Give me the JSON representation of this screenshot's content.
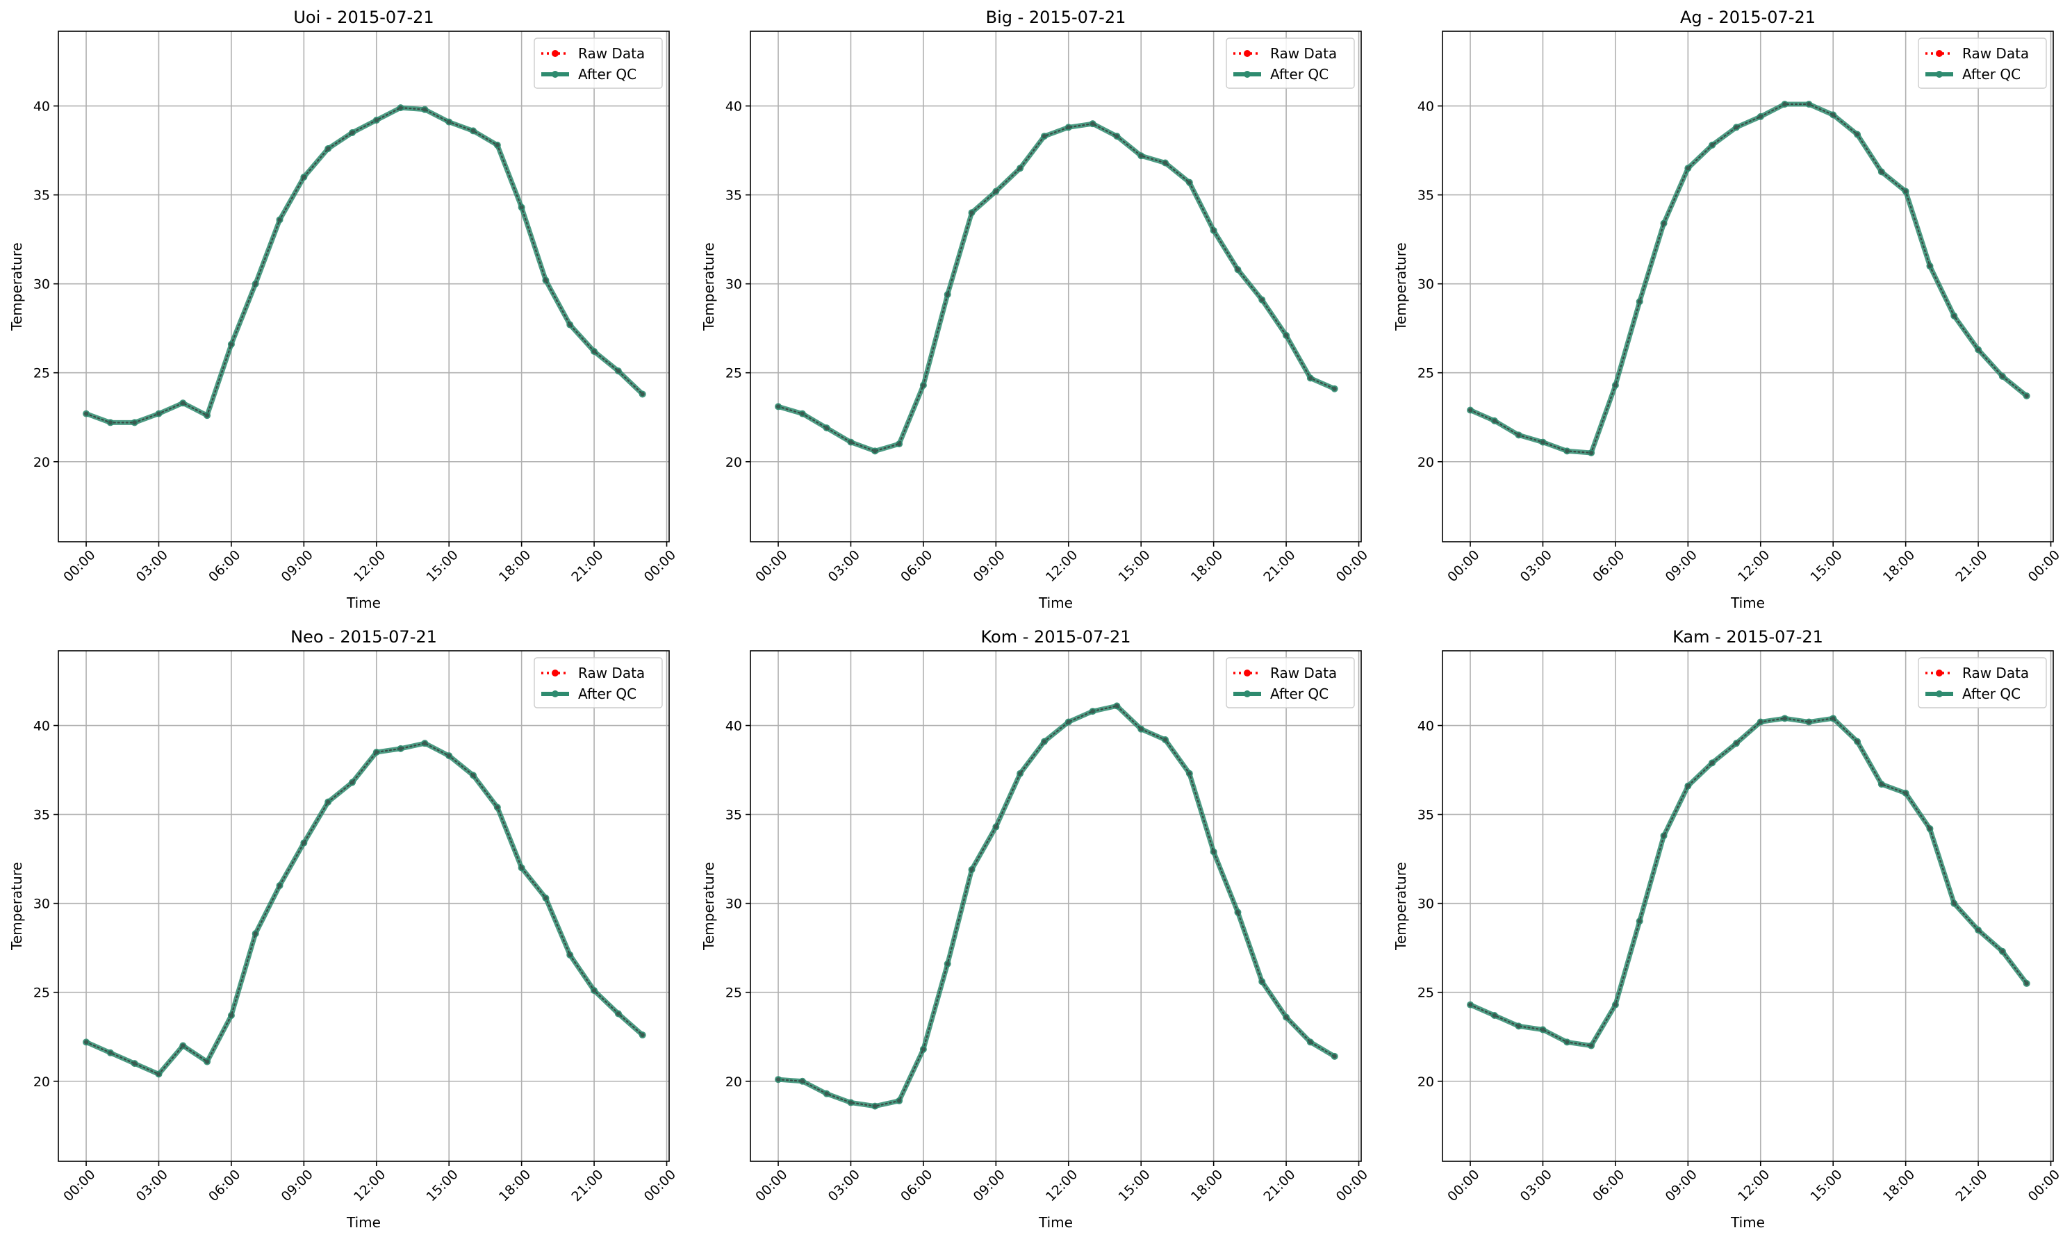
{
  "chart_data": [
    {
      "type": "line",
      "title": "Uoi - 2015-07-21",
      "xlabel": "Time",
      "ylabel": "Temperature",
      "x": [
        "00:00",
        "01:00",
        "02:00",
        "03:00",
        "04:00",
        "05:00",
        "06:00",
        "07:00",
        "08:00",
        "09:00",
        "10:00",
        "11:00",
        "12:00",
        "13:00",
        "14:00",
        "15:00",
        "16:00",
        "17:00",
        "18:00",
        "19:00",
        "20:00",
        "21:00",
        "22:00",
        "23:00"
      ],
      "xticks": [
        "00:00",
        "03:00",
        "06:00",
        "09:00",
        "12:00",
        "15:00",
        "18:00",
        "21:00",
        "00:00"
      ],
      "yticks": [
        20,
        25,
        30,
        35,
        40
      ],
      "ylim": [
        15.5,
        44.2
      ],
      "grid": true,
      "legend_position": "top-right",
      "series": [
        {
          "name": "Raw Data",
          "color": "#ff0000",
          "style": "dotted-markers",
          "values": [
            22.7,
            22.2,
            22.2,
            22.7,
            23.3,
            22.6,
            26.6,
            30.0,
            33.6,
            36.0,
            37.6,
            38.5,
            39.2,
            39.9,
            39.8,
            39.1,
            38.6,
            37.8,
            34.3,
            30.2,
            27.7,
            26.2,
            25.1,
            23.8
          ]
        },
        {
          "name": "After QC",
          "color": "#2e8b6f",
          "style": "solid-markers",
          "values": [
            22.7,
            22.2,
            22.2,
            22.7,
            23.3,
            22.6,
            26.6,
            30.0,
            33.6,
            36.0,
            37.6,
            38.5,
            39.2,
            39.9,
            39.8,
            39.1,
            38.6,
            37.8,
            34.3,
            30.2,
            27.7,
            26.2,
            25.1,
            23.8
          ]
        }
      ]
    },
    {
      "type": "line",
      "title": "Big - 2015-07-21",
      "xlabel": "Time",
      "ylabel": "Temperature",
      "x": [
        "00:00",
        "01:00",
        "02:00",
        "03:00",
        "04:00",
        "05:00",
        "06:00",
        "07:00",
        "08:00",
        "09:00",
        "10:00",
        "11:00",
        "12:00",
        "13:00",
        "14:00",
        "15:00",
        "16:00",
        "17:00",
        "18:00",
        "19:00",
        "20:00",
        "21:00",
        "22:00",
        "23:00"
      ],
      "xticks": [
        "00:00",
        "03:00",
        "06:00",
        "09:00",
        "12:00",
        "15:00",
        "18:00",
        "21:00",
        "00:00"
      ],
      "yticks": [
        20,
        25,
        30,
        35,
        40
      ],
      "ylim": [
        15.5,
        44.2
      ],
      "grid": true,
      "legend_position": "top-right",
      "series": [
        {
          "name": "Raw Data",
          "color": "#ff0000",
          "style": "dotted-markers",
          "values": [
            23.1,
            22.7,
            21.9,
            21.1,
            20.6,
            21.0,
            24.3,
            29.4,
            34.0,
            35.2,
            36.5,
            38.3,
            38.8,
            39.0,
            38.3,
            37.2,
            36.8,
            35.7,
            33.0,
            30.8,
            29.1,
            27.1,
            24.7,
            24.1
          ]
        },
        {
          "name": "After QC",
          "color": "#2e8b6f",
          "style": "solid-markers",
          "values": [
            23.1,
            22.7,
            21.9,
            21.1,
            20.6,
            21.0,
            24.3,
            29.4,
            34.0,
            35.2,
            36.5,
            38.3,
            38.8,
            39.0,
            38.3,
            37.2,
            36.8,
            35.7,
            33.0,
            30.8,
            29.1,
            27.1,
            24.7,
            24.1
          ]
        }
      ]
    },
    {
      "type": "line",
      "title": "Ag - 2015-07-21",
      "xlabel": "Time",
      "ylabel": "Temperature",
      "x": [
        "00:00",
        "01:00",
        "02:00",
        "03:00",
        "04:00",
        "05:00",
        "06:00",
        "07:00",
        "08:00",
        "09:00",
        "10:00",
        "11:00",
        "12:00",
        "13:00",
        "14:00",
        "15:00",
        "16:00",
        "17:00",
        "18:00",
        "19:00",
        "20:00",
        "21:00",
        "22:00",
        "23:00"
      ],
      "xticks": [
        "00:00",
        "03:00",
        "06:00",
        "09:00",
        "12:00",
        "15:00",
        "18:00",
        "21:00",
        "00:00"
      ],
      "yticks": [
        20,
        25,
        30,
        35,
        40
      ],
      "ylim": [
        15.5,
        44.2
      ],
      "grid": true,
      "legend_position": "top-right",
      "series": [
        {
          "name": "Raw Data",
          "color": "#ff0000",
          "style": "dotted-markers",
          "values": [
            22.9,
            22.3,
            21.5,
            21.1,
            20.6,
            20.5,
            24.3,
            29.0,
            33.4,
            36.5,
            37.8,
            38.8,
            39.4,
            40.1,
            40.1,
            39.5,
            38.4,
            36.3,
            35.2,
            31.0,
            28.2,
            26.3,
            24.8,
            23.7
          ]
        },
        {
          "name": "After QC",
          "color": "#2e8b6f",
          "style": "solid-markers",
          "values": [
            22.9,
            22.3,
            21.5,
            21.1,
            20.6,
            20.5,
            24.3,
            29.0,
            33.4,
            36.5,
            37.8,
            38.8,
            39.4,
            40.1,
            40.1,
            39.5,
            38.4,
            36.3,
            35.2,
            31.0,
            28.2,
            26.3,
            24.8,
            23.7
          ]
        }
      ]
    },
    {
      "type": "line",
      "title": "Neo - 2015-07-21",
      "xlabel": "Time",
      "ylabel": "Temperature",
      "x": [
        "00:00",
        "01:00",
        "02:00",
        "03:00",
        "04:00",
        "05:00",
        "06:00",
        "07:00",
        "08:00",
        "09:00",
        "10:00",
        "11:00",
        "12:00",
        "13:00",
        "14:00",
        "15:00",
        "16:00",
        "17:00",
        "18:00",
        "19:00",
        "20:00",
        "21:00",
        "22:00",
        "23:00"
      ],
      "xticks": [
        "00:00",
        "03:00",
        "06:00",
        "09:00",
        "12:00",
        "15:00",
        "18:00",
        "21:00",
        "00:00"
      ],
      "yticks": [
        20,
        25,
        30,
        35,
        40
      ],
      "ylim": [
        15.5,
        44.2
      ],
      "grid": true,
      "legend_position": "top-right",
      "series": [
        {
          "name": "Raw Data",
          "color": "#ff0000",
          "style": "dotted-markers",
          "values": [
            22.2,
            21.6,
            21.0,
            20.4,
            22.0,
            21.1,
            23.7,
            28.3,
            31.0,
            33.4,
            35.7,
            36.8,
            38.5,
            38.7,
            39.0,
            38.3,
            37.2,
            35.4,
            32.0,
            30.3,
            27.1,
            25.1,
            23.8,
            22.6
          ]
        },
        {
          "name": "After QC",
          "color": "#2e8b6f",
          "style": "solid-markers",
          "values": [
            22.2,
            21.6,
            21.0,
            20.4,
            22.0,
            21.1,
            23.7,
            28.3,
            31.0,
            33.4,
            35.7,
            36.8,
            38.5,
            38.7,
            39.0,
            38.3,
            37.2,
            35.4,
            32.0,
            30.3,
            27.1,
            25.1,
            23.8,
            22.6
          ]
        }
      ]
    },
    {
      "type": "line",
      "title": "Kom - 2015-07-21",
      "xlabel": "Time",
      "ylabel": "Temperature",
      "x": [
        "00:00",
        "01:00",
        "02:00",
        "03:00",
        "04:00",
        "05:00",
        "06:00",
        "07:00",
        "08:00",
        "09:00",
        "10:00",
        "11:00",
        "12:00",
        "13:00",
        "14:00",
        "15:00",
        "16:00",
        "17:00",
        "18:00",
        "19:00",
        "20:00",
        "21:00",
        "22:00",
        "23:00"
      ],
      "xticks": [
        "00:00",
        "03:00",
        "06:00",
        "09:00",
        "12:00",
        "15:00",
        "18:00",
        "21:00",
        "00:00"
      ],
      "yticks": [
        20,
        25,
        30,
        35,
        40
      ],
      "ylim": [
        15.5,
        44.2
      ],
      "grid": true,
      "legend_position": "top-right",
      "series": [
        {
          "name": "Raw Data",
          "color": "#ff0000",
          "style": "dotted-markers",
          "values": [
            20.1,
            20.0,
            19.3,
            18.8,
            18.6,
            18.9,
            21.8,
            26.6,
            31.9,
            34.3,
            37.3,
            39.1,
            40.2,
            40.8,
            41.1,
            39.8,
            39.2,
            37.3,
            32.9,
            29.5,
            25.6,
            23.6,
            22.2,
            21.4
          ]
        },
        {
          "name": "After QC",
          "color": "#2e8b6f",
          "style": "solid-markers",
          "values": [
            20.1,
            20.0,
            19.3,
            18.8,
            18.6,
            18.9,
            21.8,
            26.6,
            31.9,
            34.3,
            37.3,
            39.1,
            40.2,
            40.8,
            41.1,
            39.8,
            39.2,
            37.3,
            32.9,
            29.5,
            25.6,
            23.6,
            22.2,
            21.4
          ]
        }
      ]
    },
    {
      "type": "line",
      "title": "Kam - 2015-07-21",
      "xlabel": "Time",
      "ylabel": "Temperature",
      "x": [
        "00:00",
        "01:00",
        "02:00",
        "03:00",
        "04:00",
        "05:00",
        "06:00",
        "07:00",
        "08:00",
        "09:00",
        "10:00",
        "11:00",
        "12:00",
        "13:00",
        "14:00",
        "15:00",
        "16:00",
        "17:00",
        "18:00",
        "19:00",
        "20:00",
        "21:00",
        "22:00",
        "23:00"
      ],
      "xticks": [
        "00:00",
        "03:00",
        "06:00",
        "09:00",
        "12:00",
        "15:00",
        "18:00",
        "21:00",
        "00:00"
      ],
      "yticks": [
        20,
        25,
        30,
        35,
        40
      ],
      "ylim": [
        15.5,
        44.2
      ],
      "grid": true,
      "legend_position": "top-right",
      "series": [
        {
          "name": "Raw Data",
          "color": "#ff0000",
          "style": "dotted-markers",
          "values": [
            24.3,
            23.7,
            23.1,
            22.9,
            22.2,
            22.0,
            24.3,
            29.0,
            33.8,
            36.6,
            37.9,
            39.0,
            40.2,
            40.4,
            40.2,
            40.4,
            39.1,
            36.7,
            36.2,
            34.2,
            30.0,
            28.5,
            27.3,
            25.5
          ]
        },
        {
          "name": "After QC",
          "color": "#2e8b6f",
          "style": "solid-markers",
          "values": [
            24.3,
            23.7,
            23.1,
            22.9,
            22.2,
            22.0,
            24.3,
            29.0,
            33.8,
            36.6,
            37.9,
            39.0,
            40.2,
            40.4,
            40.2,
            40.4,
            39.1,
            36.7,
            36.2,
            34.2,
            30.0,
            28.5,
            27.3,
            25.5
          ]
        }
      ]
    }
  ]
}
